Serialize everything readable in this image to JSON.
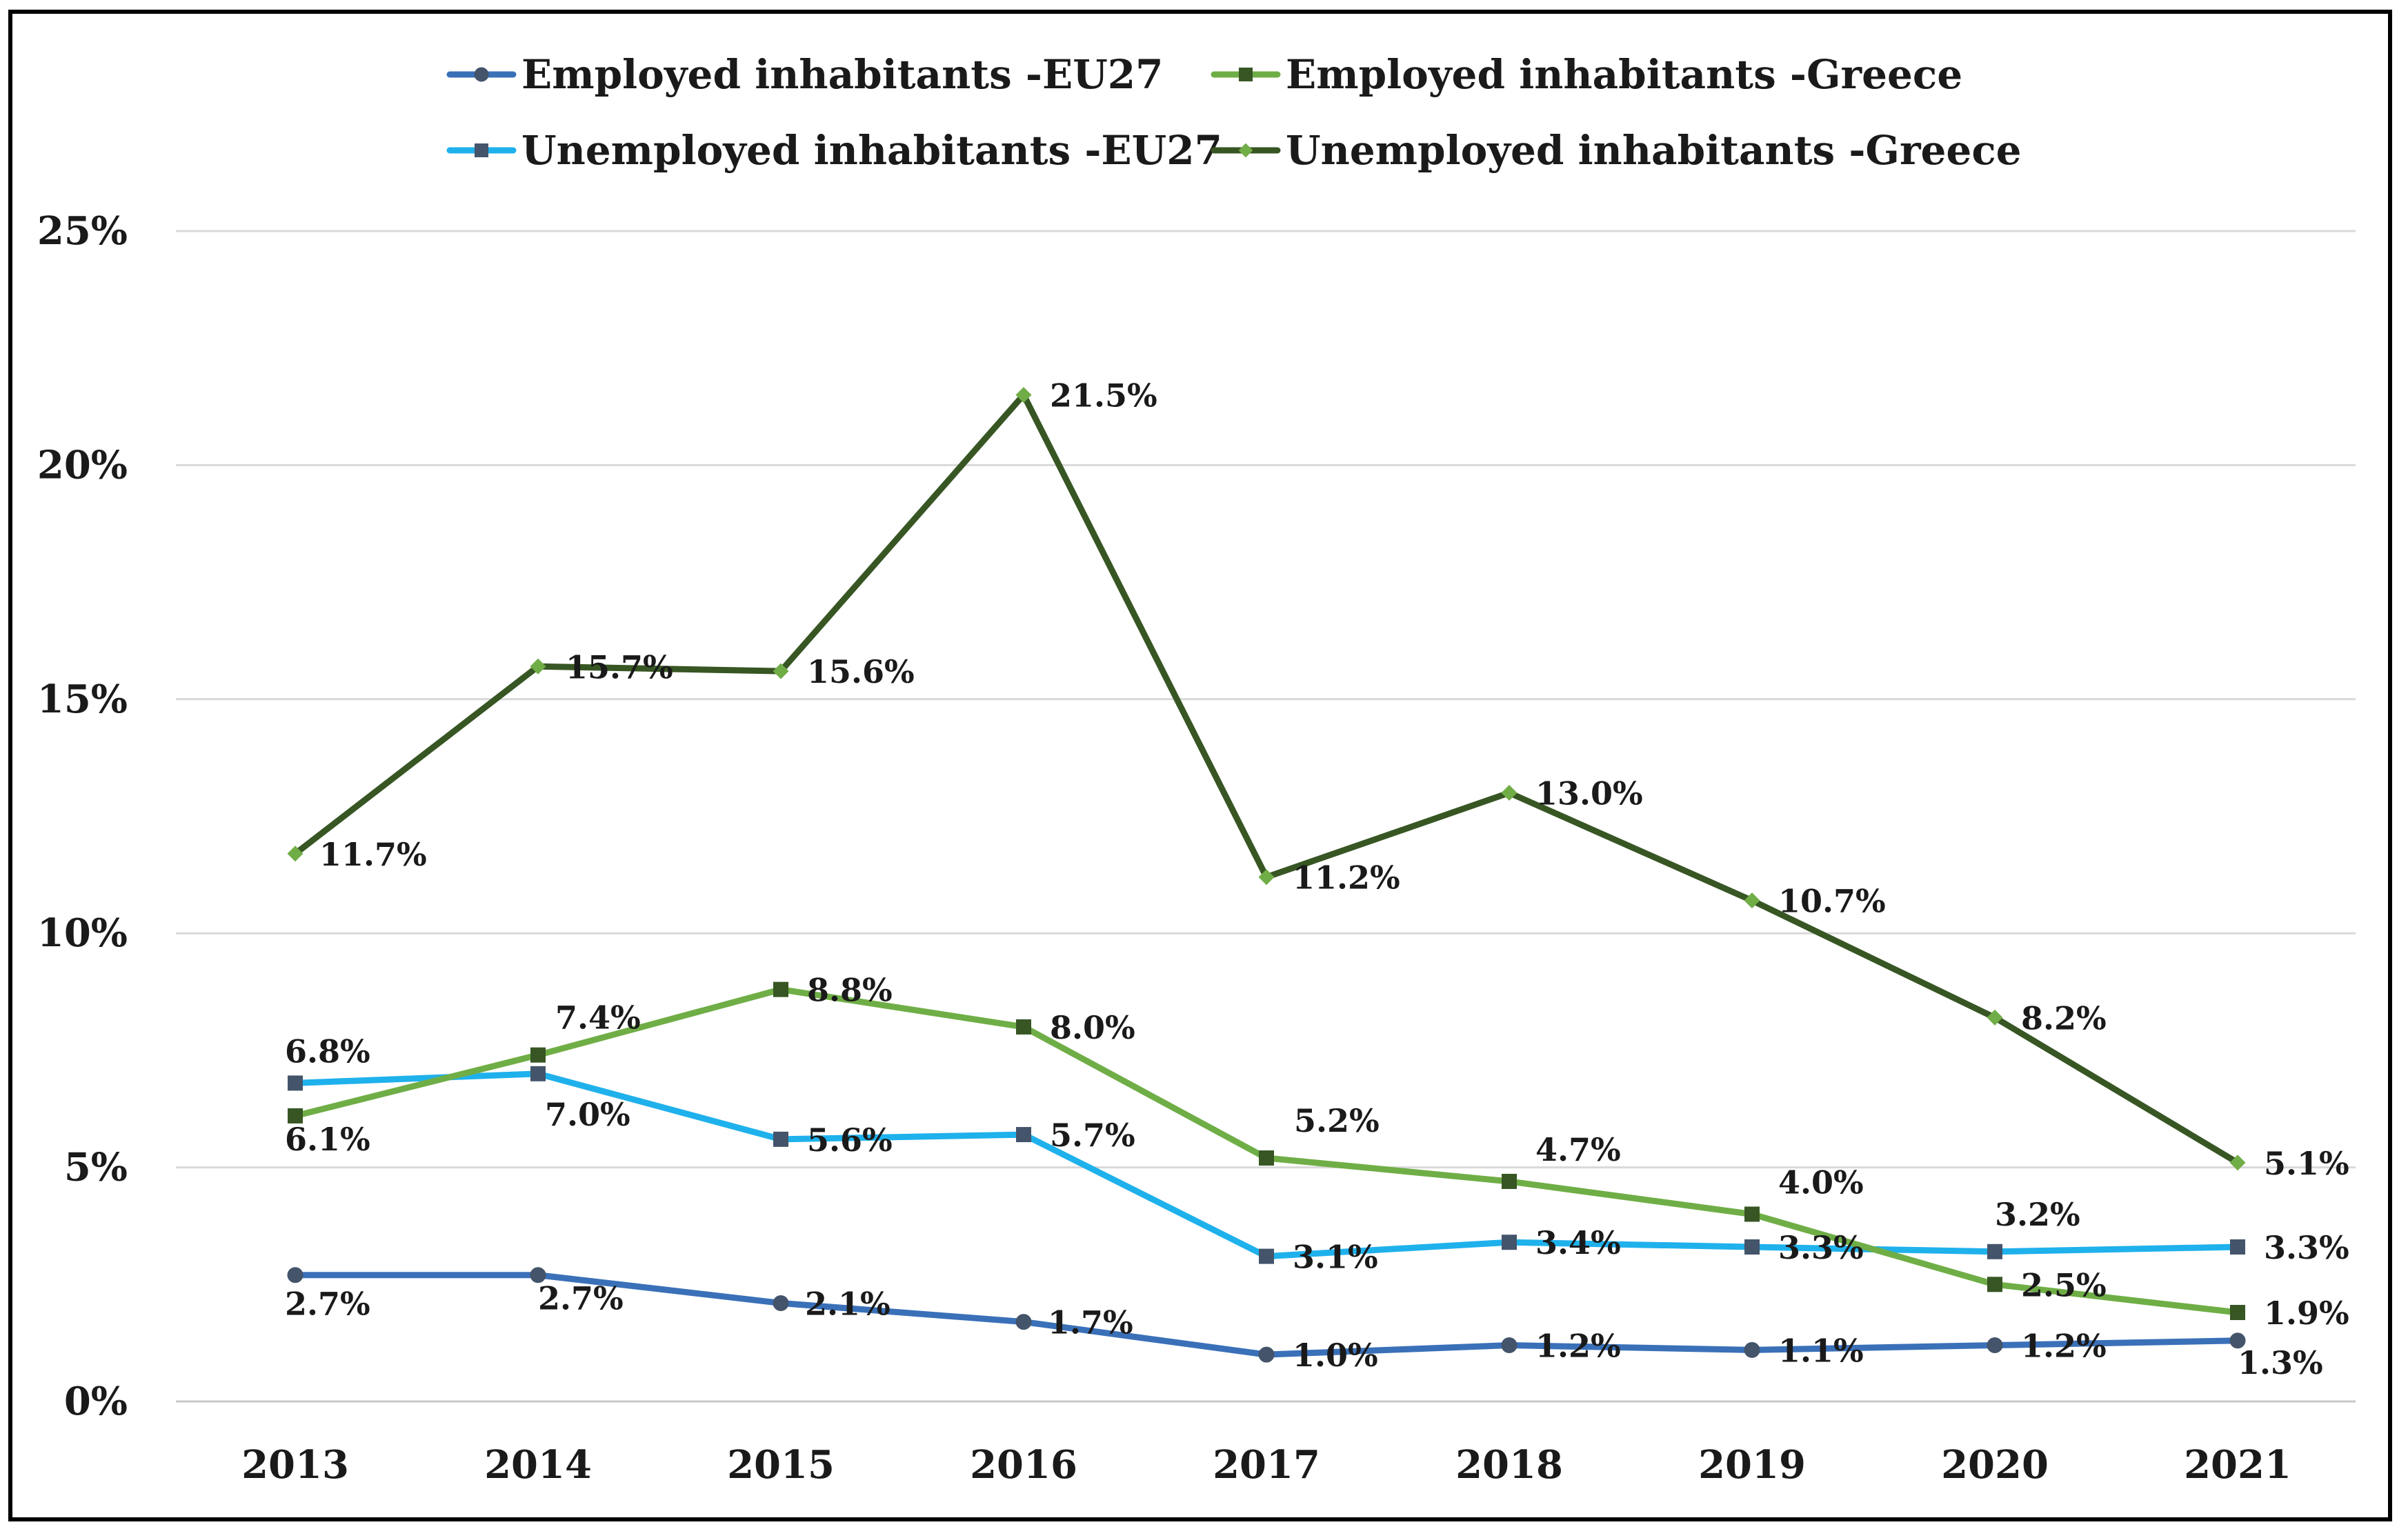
{
  "chart_data": {
    "type": "line",
    "title": "",
    "xlabel": "",
    "ylabel": "",
    "categories": [
      "2013",
      "2014",
      "2015",
      "2016",
      "2017",
      "2018",
      "2019",
      "2020",
      "2021"
    ],
    "ylim": [
      0,
      25
    ],
    "y_ticks": [
      0,
      5,
      10,
      15,
      20,
      25
    ],
    "y_tick_labels": [
      "0%",
      "5%",
      "10%",
      "15%",
      "20%",
      "25%"
    ],
    "grid": true,
    "legend_position": "top",
    "series": [
      {
        "name": "Employed inhabitants -EU27",
        "color": "#3a70b8",
        "marker": "circle",
        "values": [
          2.7,
          2.7,
          2.1,
          1.7,
          1.0,
          1.2,
          1.1,
          1.2,
          1.3
        ],
        "labels": [
          "2.7%",
          "2.7%",
          "2.1%",
          "1.7%",
          "1.0%",
          "1.2%",
          "1.1%",
          "1.2%",
          "1.3%"
        ]
      },
      {
        "name": "Employed inhabitants -Greece",
        "color": "#6fae46",
        "marker": "square",
        "values": [
          6.1,
          7.4,
          8.8,
          8.0,
          5.2,
          4.7,
          4.0,
          2.5,
          1.9
        ],
        "labels": [
          "6.1%",
          "7.4%",
          "8.8%",
          "8.0%",
          "5.2%",
          "4.7%",
          "4.0%",
          "2.5%",
          "1.9%"
        ]
      },
      {
        "name": "Unemployed inhabitants -EU27",
        "color": "#1fb1ec",
        "marker": "square",
        "values": [
          6.8,
          7.0,
          5.6,
          5.7,
          3.1,
          3.4,
          3.3,
          3.2,
          3.3
        ],
        "labels": [
          "6.8%",
          "7.0%",
          "5.6%",
          "5.7%",
          "3.1%",
          "3.4%",
          "3.3%",
          "3.2%",
          "3.3%"
        ]
      },
      {
        "name": "Unemployed inhabitants -Greece",
        "color": "#375623",
        "marker": "diamond",
        "values": [
          11.7,
          15.7,
          15.6,
          21.5,
          11.2,
          13.0,
          10.7,
          8.2,
          5.1
        ],
        "labels": [
          "11.7%",
          "15.7%",
          "15.6%",
          "21.5%",
          "11.2%",
          "13.0%",
          "10.7%",
          "8.2%",
          "5.1%"
        ]
      }
    ]
  }
}
